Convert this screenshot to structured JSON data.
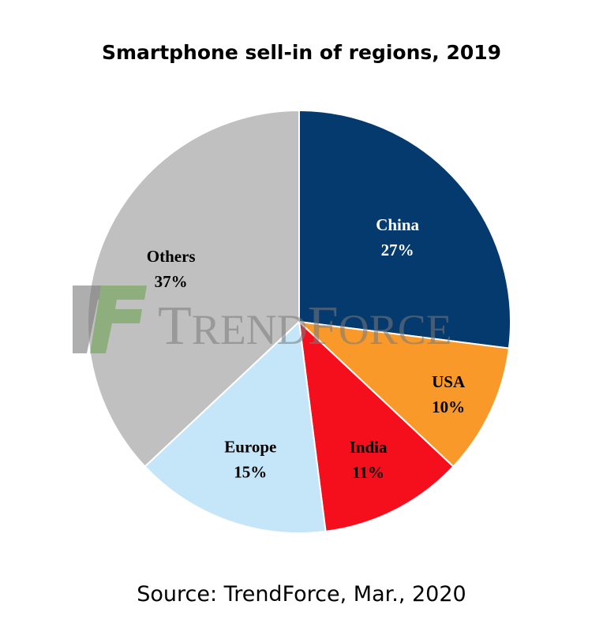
{
  "chart_data": {
    "type": "pie",
    "title": "Smartphone sell-in of regions, 2019",
    "source": "Source: TrendForce, Mar., 2020",
    "slices": [
      {
        "label": "China",
        "value": 27,
        "percent_label": "27%",
        "color": "#043a6e",
        "label_color": "#ffffff"
      },
      {
        "label": "USA",
        "value": 10,
        "percent_label": "10%",
        "color": "#f8992a",
        "label_color": "#000000"
      },
      {
        "label": "India",
        "value": 11,
        "percent_label": "11%",
        "color": "#f50f1d",
        "label_color": "#000000"
      },
      {
        "label": "Europe",
        "value": 15,
        "percent_label": "15%",
        "color": "#c5e5f8",
        "label_color": "#000000"
      },
      {
        "label": "Others",
        "value": 37,
        "percent_label": "37%",
        "color": "#c0c0c0",
        "label_color": "#000000"
      }
    ],
    "start": "12 o'clock",
    "direction": "clockwise",
    "legend": "none"
  },
  "watermark": {
    "text": "TrendForce",
    "logo_colors": [
      "#7a7a7a",
      "#6fa352"
    ]
  }
}
